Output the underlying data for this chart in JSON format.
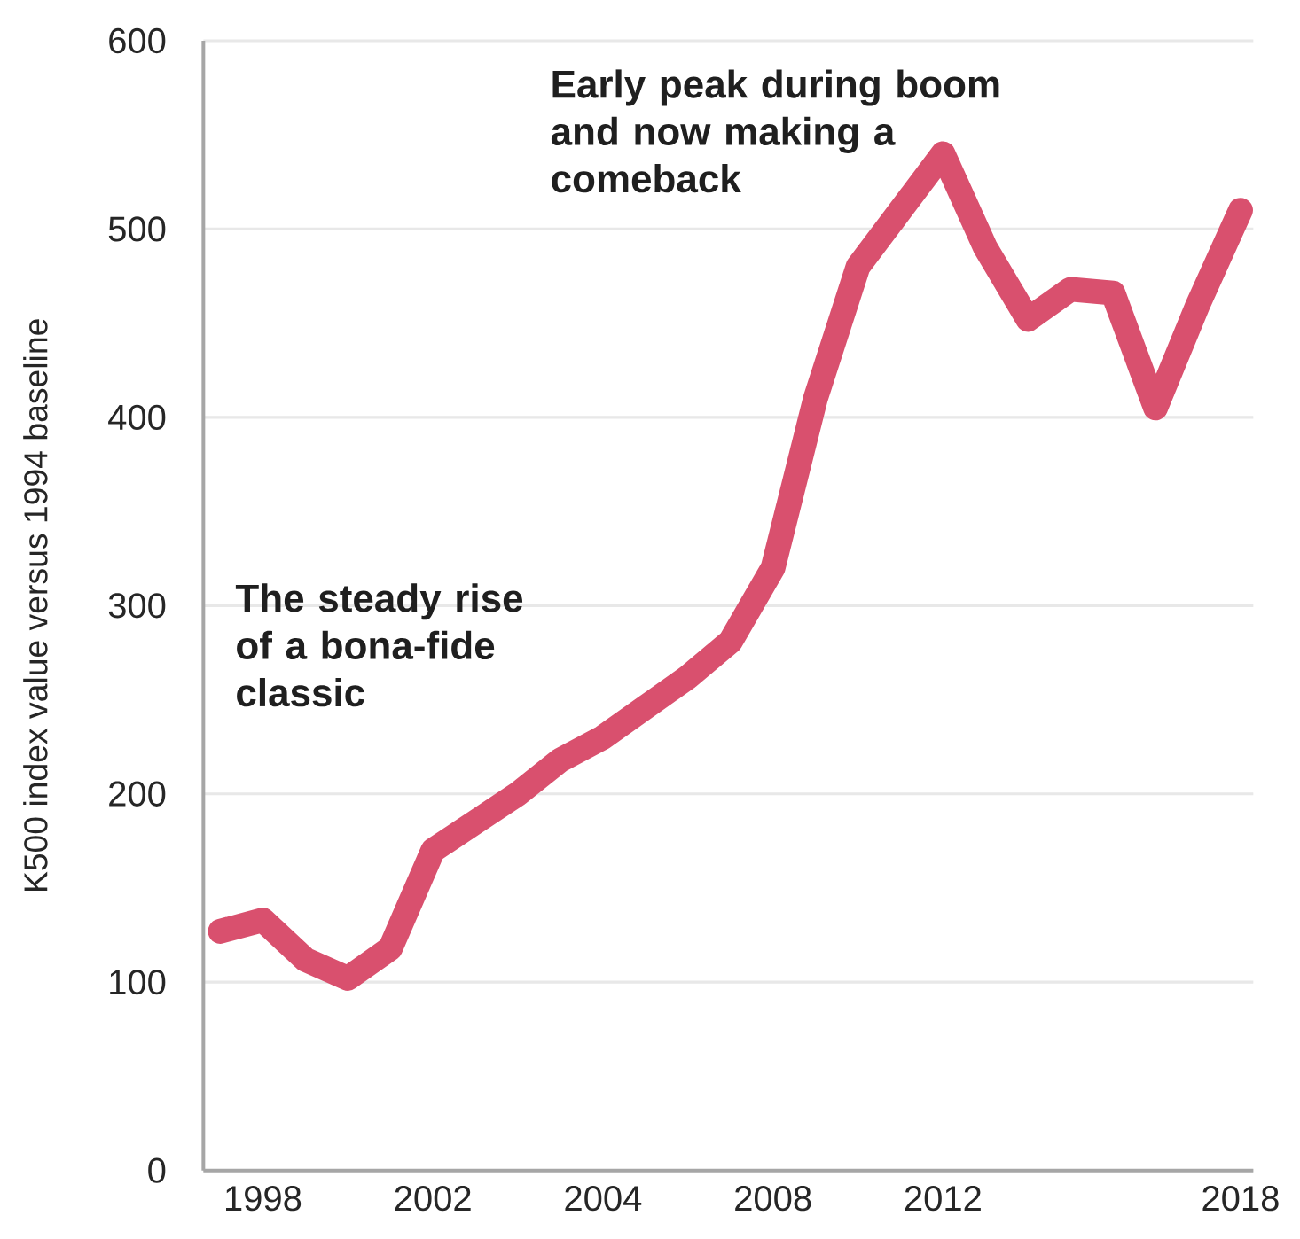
{
  "chart_data": {
    "type": "line",
    "ylabel": "K500 index value versus 1994 baseline",
    "categories": [
      null,
      "1998",
      null,
      null,
      null,
      "2002",
      null,
      null,
      null,
      "2004",
      null,
      null,
      null,
      "2008",
      null,
      null,
      null,
      "2012",
      null,
      null,
      null,
      null,
      null,
      null,
      "2018"
    ],
    "series": [
      {
        "color": "#d9506e",
        "values": [
          127,
          133,
          112,
          102,
          118,
          170,
          185,
          200,
          218,
          230,
          246,
          262,
          281,
          320,
          410,
          480,
          510,
          540,
          490,
          452,
          468,
          466,
          405,
          460,
          510
        ]
      }
    ],
    "ylim": [
      0,
      600
    ],
    "yticks": [
      0,
      100,
      200,
      300,
      400,
      500,
      600
    ],
    "grid": "y",
    "marker": "none",
    "line_style": "solid",
    "annotations": [
      "The steady rise of a bona-fide classic",
      "Early peak during boom and now making a comeback"
    ]
  }
}
